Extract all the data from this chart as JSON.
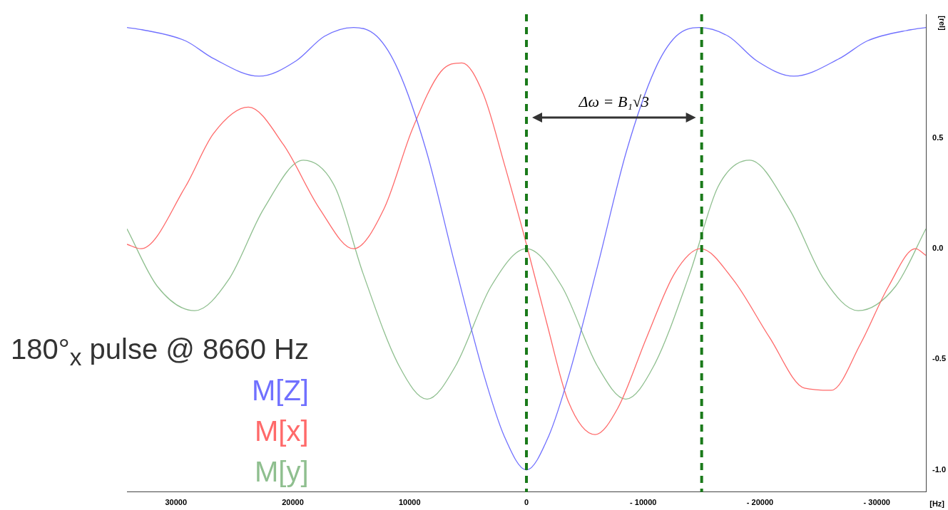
{
  "chart_data": {
    "type": "line",
    "title": "180°$_{x}$ pulse @ 8660 Hz",
    "xlabel": "[Hz]",
    "ylabel": "[rel]",
    "xlim": [
      34200,
      -34200
    ],
    "xticks": [
      30000,
      20000,
      10000,
      0,
      {
        "value": -10000,
        "label": "- 10000"
      },
      {
        "value": -20000,
        "label": "- 20000"
      },
      {
        "value": -30000,
        "label": "- 30000"
      }
    ],
    "ylim": [
      -1.1,
      1.06
    ],
    "yticks": [
      0.5,
      {
        "value": 0,
        "label": "0.0"
      },
      -0.5,
      {
        "value": -1,
        "label": "-1.0"
      }
    ],
    "grid": false,
    "legend": false,
    "marker": "none",
    "line_style": "solid",
    "series": [
      {
        "name": "M[Z]",
        "color": "#7070ff",
        "x": [
          34200,
          32900,
          29200,
          26800,
          22900,
          19700,
          17300,
          14800,
          12800,
          11000,
          8560,
          6130,
          3700,
          1880,
          0,
          -1880,
          -3700,
          -6130,
          -8560,
          -11000,
          -12800,
          -14800,
          -17300,
          -19700,
          -22900,
          -26800,
          -29200,
          -32900,
          -34200
        ],
        "values": [
          1.0,
          0.99,
          0.94,
          0.86,
          0.78,
          0.85,
          0.96,
          1.0,
          0.96,
          0.81,
          0.44,
          -0.07,
          -0.56,
          -0.85,
          -1.0,
          -0.85,
          -0.56,
          -0.07,
          0.44,
          0.81,
          0.96,
          1.0,
          0.96,
          0.85,
          0.78,
          0.86,
          0.94,
          0.99,
          1.0
        ]
      },
      {
        "name": "M[x]",
        "color": "#ff6a6a",
        "x": [
          34200,
          33000,
          29200,
          26800,
          23800,
          20800,
          17700,
          14800,
          12200,
          9770,
          7340,
          5520,
          3700,
          1880,
          0,
          -1760,
          -3580,
          -5880,
          -7830,
          -10300,
          -12700,
          -14900,
          -17700,
          -20800,
          -23800,
          -26100,
          -28600,
          -31000,
          -33300,
          -34200
        ],
        "values": [
          0.02,
          0,
          0.28,
          0.52,
          0.64,
          0.47,
          0.18,
          0,
          0.18,
          0.54,
          0.8,
          0.84,
          0.7,
          0.38,
          0.02,
          -0.34,
          -0.69,
          -0.84,
          -0.72,
          -0.4,
          -0.11,
          0,
          -0.14,
          -0.4,
          -0.63,
          -0.64,
          -0.43,
          -0.17,
          0,
          -0.03
        ]
      },
      {
        "name": "M[y]",
        "color": "#8fbf8f",
        "x": [
          34200,
          31600,
          28400,
          25500,
          22500,
          19100,
          16400,
          14000,
          10900,
          8500,
          6070,
          3030,
          0,
          -3030,
          -6070,
          -8500,
          -10900,
          -14000,
          -16400,
          -19100,
          -22500,
          -25500,
          -28400,
          -31600,
          -34200
        ],
        "values": [
          0.09,
          -0.17,
          -0.28,
          -0.14,
          0.18,
          0.4,
          0.28,
          -0.11,
          -0.53,
          -0.68,
          -0.53,
          -0.17,
          0,
          -0.17,
          -0.53,
          -0.68,
          -0.53,
          -0.11,
          0.28,
          0.4,
          0.18,
          -0.14,
          -0.28,
          -0.17,
          0.09
        ]
      }
    ],
    "ref_lines": [
      {
        "axis": "x",
        "value": 0,
        "color": "#1a7a1a",
        "line_style": "dashed"
      },
      {
        "axis": "x",
        "value": -15000,
        "color": "#1a7a1a",
        "line_style": "dashed"
      }
    ],
    "annotations": [
      "Δω = B₁√3"
    ]
  }
}
